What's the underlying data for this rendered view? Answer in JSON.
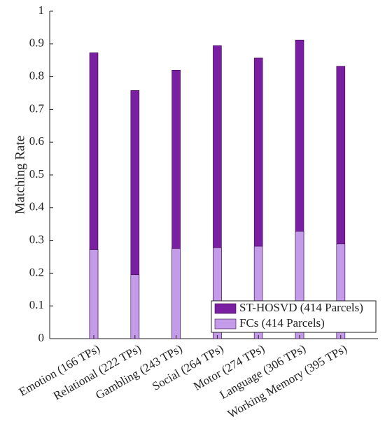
{
  "chart_data": {
    "type": "bar",
    "ylabel": "Matching Rate",
    "categories": [
      "Emotion (166 TPs)",
      "Relational (222 TPs)",
      "Gambling (243 TPs)",
      "Social (264 TPs)",
      "Motor (274 TPs)",
      "Language (306 TPs)",
      "Working Memory (395 TPs)"
    ],
    "series": [
      {
        "name": "ST-HOSVD (414 Parcels)",
        "color": "#7b1fa2",
        "values": [
          0.873,
          0.758,
          0.82,
          0.895,
          0.857,
          0.912,
          0.832
        ]
      },
      {
        "name": "FCs (414 Parcels)",
        "color": "#c39be8",
        "values": [
          0.272,
          0.195,
          0.275,
          0.278,
          0.282,
          0.328,
          0.289
        ]
      }
    ],
    "ylim": [
      0,
      1
    ],
    "yticks": [
      0,
      0.1,
      0.2,
      0.3,
      0.4,
      0.5,
      0.6,
      0.7,
      0.8,
      0.9,
      1
    ],
    "legend": "lower right"
  }
}
